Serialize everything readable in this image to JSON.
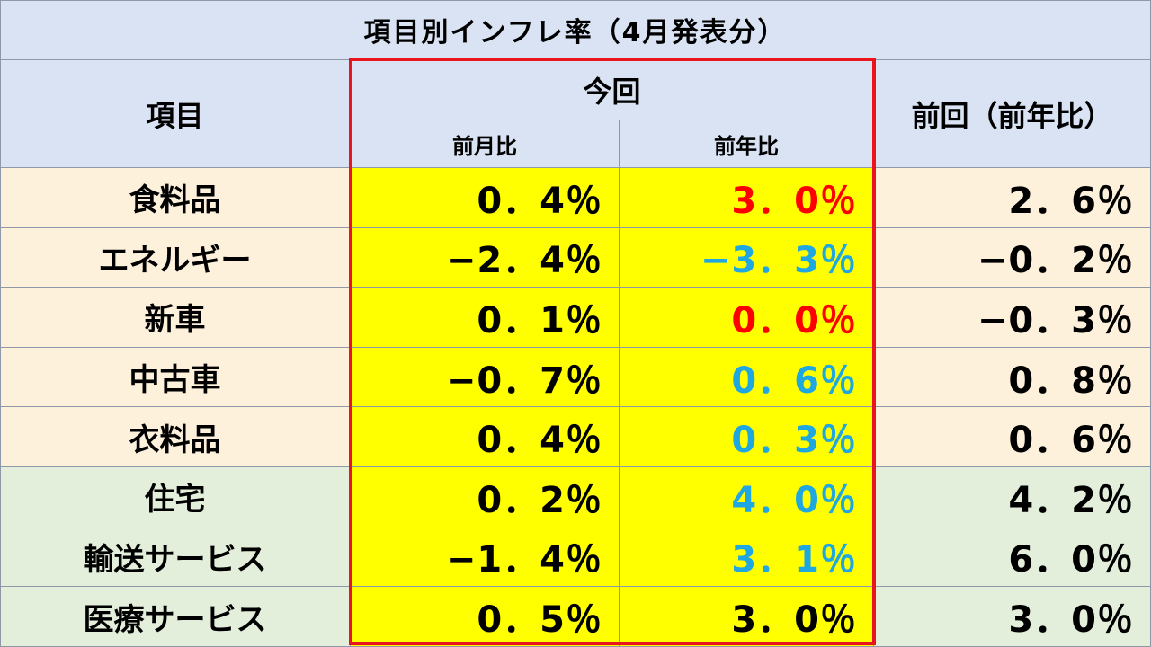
{
  "chart_data": {
    "type": "table",
    "title": "項目別インフレ率（4月発表分）",
    "header": {
      "item": "項目",
      "current_group": "今回",
      "mom": "前月比",
      "yoy": "前年比",
      "previous": "前回（前年比）"
    },
    "rows": [
      {
        "item": "食料品",
        "mom": "0．4％",
        "yoy": "3．0％",
        "prev": "2．6％",
        "group": "goods",
        "yoy_color": "#ff0000"
      },
      {
        "item": "エネルギー",
        "mom": "−2．4％",
        "yoy": "−3．3％",
        "prev": "−0．2％",
        "group": "goods",
        "yoy_color": "#1ea7e1"
      },
      {
        "item": "新車",
        "mom": "0．1％",
        "yoy": "0．0％",
        "prev": "−0．3％",
        "group": "goods",
        "yoy_color": "#ff0000"
      },
      {
        "item": "中古車",
        "mom": "−0．7％",
        "yoy": "0．6％",
        "prev": "0．8％",
        "group": "goods",
        "yoy_color": "#1ea7e1"
      },
      {
        "item": "衣料品",
        "mom": "0．4％",
        "yoy": "0．3％",
        "prev": "0．6％",
        "group": "goods",
        "yoy_color": "#1ea7e1"
      },
      {
        "item": "住宅",
        "mom": "0．2％",
        "yoy": "4．0％",
        "prev": "4．2％",
        "group": "services",
        "yoy_color": "#1ea7e1"
      },
      {
        "item": "輸送サービス",
        "mom": "−1．4％",
        "yoy": "3．1％",
        "prev": "6．0％",
        "group": "services",
        "yoy_color": "#1ea7e1"
      },
      {
        "item": "医療サービス",
        "mom": "0．5％",
        "yoy": "3．0％",
        "prev": "3．0％",
        "group": "services",
        "yoy_color": "#000000"
      }
    ]
  },
  "colors": {
    "header_bg": "#dae3f3",
    "goods_bg": "#fdf1dc",
    "services_bg": "#e3eedb",
    "highlight_bg": "#ffff00",
    "frame": "#e8161c"
  }
}
